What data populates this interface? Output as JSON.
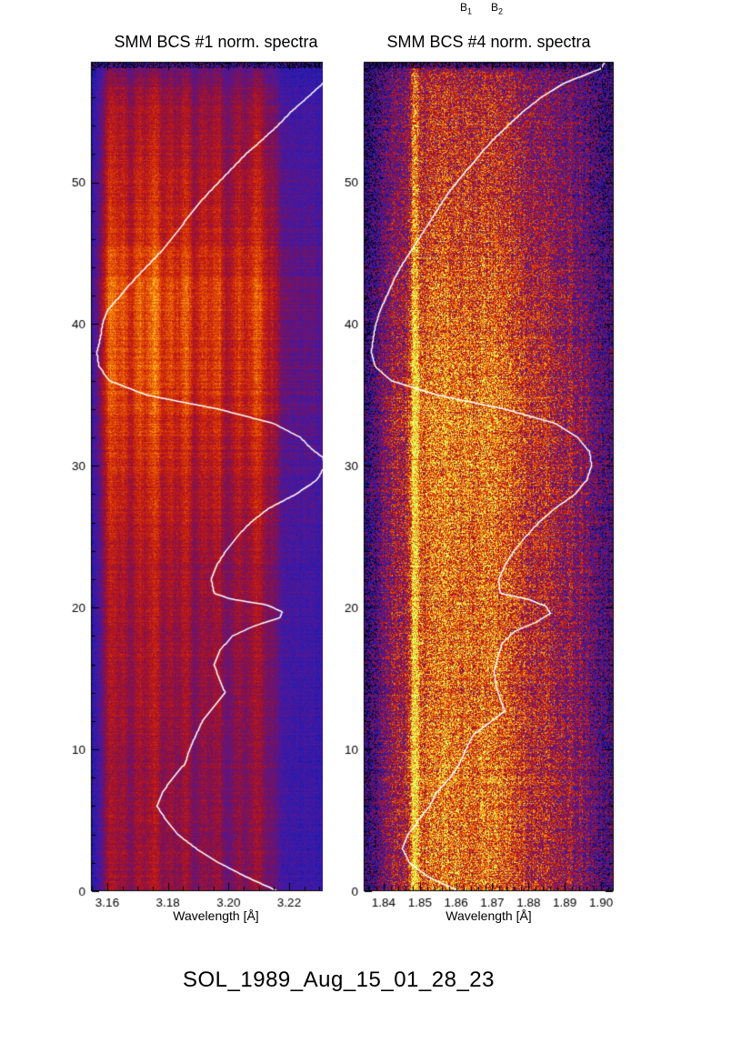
{
  "figure": {
    "background": "#ffffff",
    "caption": "SOL_1989_Aug_15_01_28_23",
    "top_labels": [
      {
        "base": "B",
        "sub": "1"
      },
      {
        "base": "B",
        "sub": "2"
      }
    ]
  },
  "chart_data": [
    {
      "type": "heatmap",
      "id": "bcs1",
      "title": "SMM BCS #1 norm. spectra",
      "xlabel": "Wavelength [Å]",
      "xlim": [
        3.1546,
        3.2371
      ],
      "ylim": [
        0,
        58.5
      ],
      "xticks": [
        {
          "value": 3.16,
          "label": "3.16"
        },
        {
          "value": 3.18,
          "label": "3.18"
        },
        {
          "value": 3.2,
          "label": "3.20"
        },
        {
          "value": 3.22,
          "label": "3.22"
        }
      ],
      "xminor_step": 0.005,
      "yticks": [
        {
          "value": 0,
          "label": "0"
        },
        {
          "value": 10,
          "label": "10"
        },
        {
          "value": 20,
          "label": "20"
        },
        {
          "value": 30,
          "label": "30"
        },
        {
          "value": 40,
          "label": "40"
        },
        {
          "value": 50,
          "label": "50"
        }
      ],
      "yminor_step": 2,
      "colormap": [
        [
          0.0,
          "#000014"
        ],
        [
          0.14,
          "#1c1cb4"
        ],
        [
          0.3,
          "#4a18a0"
        ],
        [
          0.45,
          "#84104a"
        ],
        [
          0.6,
          "#c41810"
        ],
        [
          0.75,
          "#e85800"
        ],
        [
          0.88,
          "#ffb020"
        ],
        [
          1.0,
          "#e0ff60"
        ]
      ],
      "base_level": 0.27,
      "noise": 0.09,
      "row_noise": 0.04,
      "column_noise": 0.03,
      "seed": 7,
      "top_edge": {
        "rows": 7,
        "factor": 0.45,
        "noise": 0.35
      },
      "bands": [
        {
          "center": 3.1615,
          "width": 0.0022,
          "amp": 0.34
        },
        {
          "center": 3.166,
          "width": 0.0013,
          "amp": 0.22
        },
        {
          "center": 3.1703,
          "width": 0.0016,
          "amp": 0.27
        },
        {
          "center": 3.1755,
          "width": 0.0022,
          "amp": 0.3
        },
        {
          "center": 3.1812,
          "width": 0.0016,
          "amp": 0.2
        },
        {
          "center": 3.186,
          "width": 0.0018,
          "amp": 0.24
        },
        {
          "center": 3.1917,
          "width": 0.0015,
          "amp": 0.18
        },
        {
          "center": 3.1963,
          "width": 0.0018,
          "amp": 0.24
        },
        {
          "center": 3.203,
          "width": 0.0018,
          "amp": 0.2
        },
        {
          "center": 3.2095,
          "width": 0.0026,
          "amp": 0.28
        },
        {
          "center": 3.215,
          "width": 0.0013,
          "amp": 0.12
        },
        {
          "center": 3.186,
          "width": 0.024,
          "amp": 0.14
        },
        {
          "center": 3.152,
          "width": 0.0025,
          "amp": -0.25
        }
      ],
      "time_profile": [
        [
          0,
          0.8
        ],
        [
          8,
          0.78
        ],
        [
          15,
          0.82
        ],
        [
          22,
          0.85
        ],
        [
          28,
          0.95
        ],
        [
          33,
          1.05
        ],
        [
          36,
          1.12
        ],
        [
          42,
          1.15
        ],
        [
          47,
          1.0
        ],
        [
          52,
          0.9
        ],
        [
          56,
          0.82
        ],
        [
          58.5,
          0.6
        ]
      ],
      "overlay_curve": {
        "color": "#ffffff",
        "points": [
          [
            0,
            0.745
          ],
          [
            1,
            0.62
          ],
          [
            2,
            0.51
          ],
          [
            3,
            0.42
          ],
          [
            4,
            0.345
          ],
          [
            5,
            0.3
          ],
          [
            6,
            0.262
          ],
          [
            7,
            0.285
          ],
          [
            8,
            0.327
          ],
          [
            9,
            0.375
          ],
          [
            10,
            0.393
          ],
          [
            11,
            0.418
          ],
          [
            12,
            0.444
          ],
          [
            13,
            0.49
          ],
          [
            14,
            0.535
          ],
          [
            15,
            0.51
          ],
          [
            16,
            0.491
          ],
          [
            17,
            0.515
          ],
          [
            18,
            0.564
          ],
          [
            18.7,
            0.65
          ],
          [
            19.3,
            0.755
          ],
          [
            19.7,
            0.764
          ],
          [
            20.2,
            0.7
          ],
          [
            20.6,
            0.56
          ],
          [
            21,
            0.491
          ],
          [
            22,
            0.48
          ],
          [
            23,
            0.502
          ],
          [
            24,
            0.538
          ],
          [
            25,
            0.582
          ],
          [
            26,
            0.636
          ],
          [
            27,
            0.709
          ],
          [
            28,
            0.818
          ],
          [
            29,
            0.902
          ],
          [
            30,
            0.935
          ],
          [
            30.6,
            0.925
          ],
          [
            31.2,
            0.88
          ],
          [
            32,
            0.836
          ],
          [
            33,
            0.727
          ],
          [
            34,
            0.509
          ],
          [
            35,
            0.22
          ],
          [
            36,
            0.073
          ],
          [
            37,
            0.03
          ],
          [
            38,
            0.022
          ],
          [
            39,
            0.036
          ],
          [
            40,
            0.044
          ],
          [
            41,
            0.065
          ],
          [
            42,
            0.116
          ],
          [
            43,
            0.164
          ],
          [
            44,
            0.218
          ],
          [
            45,
            0.273
          ],
          [
            46,
            0.32
          ],
          [
            47,
            0.364
          ],
          [
            48,
            0.407
          ],
          [
            49,
            0.455
          ],
          [
            50,
            0.509
          ],
          [
            51,
            0.564
          ],
          [
            52,
            0.618
          ],
          [
            53,
            0.684
          ],
          [
            54,
            0.745
          ],
          [
            55,
            0.8
          ],
          [
            56,
            0.865
          ],
          [
            57,
            0.927
          ],
          [
            58,
            0.985
          ],
          [
            58.5,
            0.99
          ]
        ]
      }
    },
    {
      "type": "heatmap",
      "id": "bcs4",
      "title": "SMM BCS #4 norm. spectra",
      "xlabel": "Wavelength [Å]",
      "xlim": [
        1.8345,
        1.9035
      ],
      "ylim": [
        0,
        58.5
      ],
      "xticks": [
        {
          "value": 1.84,
          "label": "1.84"
        },
        {
          "value": 1.85,
          "label": "1.85"
        },
        {
          "value": 1.86,
          "label": "1.86"
        },
        {
          "value": 1.87,
          "label": "1.87"
        },
        {
          "value": 1.88,
          "label": "1.88"
        },
        {
          "value": 1.89,
          "label": "1.89"
        },
        {
          "value": 1.9,
          "label": "1.90"
        }
      ],
      "xminor_step": 0.002,
      "yticks": [
        {
          "value": 0,
          "label": "0"
        },
        {
          "value": 10,
          "label": "10"
        },
        {
          "value": 20,
          "label": "20"
        },
        {
          "value": 30,
          "label": "30"
        },
        {
          "value": 40,
          "label": "40"
        },
        {
          "value": 50,
          "label": "50"
        }
      ],
      "yminor_step": 2,
      "colormap": [
        [
          0.0,
          "#000014"
        ],
        [
          0.14,
          "#1c1cb4"
        ],
        [
          0.3,
          "#4a18a0"
        ],
        [
          0.45,
          "#84104a"
        ],
        [
          0.6,
          "#c41810"
        ],
        [
          0.75,
          "#e85800"
        ],
        [
          0.88,
          "#ffb020"
        ],
        [
          1.0,
          "#e0ff60"
        ]
      ],
      "base_level": 0.5,
      "noise": 0.3,
      "row_noise": 0.05,
      "column_noise": 0.05,
      "seed": 13,
      "top_edge": {
        "rows": 7,
        "factor": 0.5,
        "noise": 0.38
      },
      "bands": [
        {
          "center": 1.8487,
          "width": 0.0009,
          "amp": 0.42
        },
        {
          "center": 1.862,
          "width": 0.0095,
          "amp": 0.22
        },
        {
          "center": 1.855,
          "width": 0.0035,
          "amp": 0.12
        },
        {
          "center": 1.87,
          "width": 0.0035,
          "amp": 0.1
        },
        {
          "center": 1.876,
          "width": 0.0025,
          "amp": 0.08
        },
        {
          "center": 1.884,
          "width": 0.003,
          "amp": 0.06
        },
        {
          "center": 1.836,
          "width": 0.003,
          "amp": -0.28
        },
        {
          "center": 1.902,
          "width": 0.005,
          "amp": -0.22
        }
      ],
      "time_profile": [
        [
          0,
          1.0
        ],
        [
          8,
          1.02
        ],
        [
          15,
          0.98
        ],
        [
          25,
          1.0
        ],
        [
          33,
          1.05
        ],
        [
          38,
          1.0
        ],
        [
          45,
          0.9
        ],
        [
          50,
          0.82
        ],
        [
          55,
          0.78
        ],
        [
          57.5,
          0.72
        ],
        [
          58.5,
          0.5
        ]
      ],
      "overlay_curve": {
        "color": "#ffffff",
        "points": [
          [
            0,
            0.38
          ],
          [
            1,
            0.255
          ],
          [
            2,
            0.182
          ],
          [
            3,
            0.153
          ],
          [
            4,
            0.175
          ],
          [
            5,
            0.218
          ],
          [
            6,
            0.262
          ],
          [
            7,
            0.291
          ],
          [
            8,
            0.345
          ],
          [
            9,
            0.382
          ],
          [
            10,
            0.407
          ],
          [
            11,
            0.436
          ],
          [
            12,
            0.51
          ],
          [
            12.7,
            0.564
          ],
          [
            13.5,
            0.545
          ],
          [
            14.5,
            0.527
          ],
          [
            15.5,
            0.52
          ],
          [
            16.5,
            0.535
          ],
          [
            17.5,
            0.553
          ],
          [
            18.3,
            0.6
          ],
          [
            19,
            0.691
          ],
          [
            19.6,
            0.745
          ],
          [
            20.1,
            0.727
          ],
          [
            20.6,
            0.655
          ],
          [
            21,
            0.545
          ],
          [
            22,
            0.538
          ],
          [
            23,
            0.564
          ],
          [
            24,
            0.6
          ],
          [
            25,
            0.647
          ],
          [
            26,
            0.698
          ],
          [
            27,
            0.764
          ],
          [
            28,
            0.844
          ],
          [
            29,
            0.891
          ],
          [
            30,
            0.909
          ],
          [
            31,
            0.902
          ],
          [
            32,
            0.855
          ],
          [
            33,
            0.764
          ],
          [
            34,
            0.564
          ],
          [
            35,
            0.291
          ],
          [
            36,
            0.109
          ],
          [
            37,
            0.044
          ],
          [
            38,
            0.029
          ],
          [
            39,
            0.036
          ],
          [
            40,
            0.047
          ],
          [
            41,
            0.065
          ],
          [
            42,
            0.091
          ],
          [
            43,
            0.116
          ],
          [
            44,
            0.145
          ],
          [
            45,
            0.182
          ],
          [
            46,
            0.218
          ],
          [
            47,
            0.255
          ],
          [
            48,
            0.291
          ],
          [
            49,
            0.327
          ],
          [
            50,
            0.371
          ],
          [
            51,
            0.418
          ],
          [
            52,
            0.465
          ],
          [
            53,
            0.516
          ],
          [
            54,
            0.575
          ],
          [
            55,
            0.636
          ],
          [
            56,
            0.709
          ],
          [
            57,
            0.8
          ],
          [
            58,
            0.945
          ],
          [
            58.5,
            0.964
          ]
        ]
      }
    }
  ]
}
